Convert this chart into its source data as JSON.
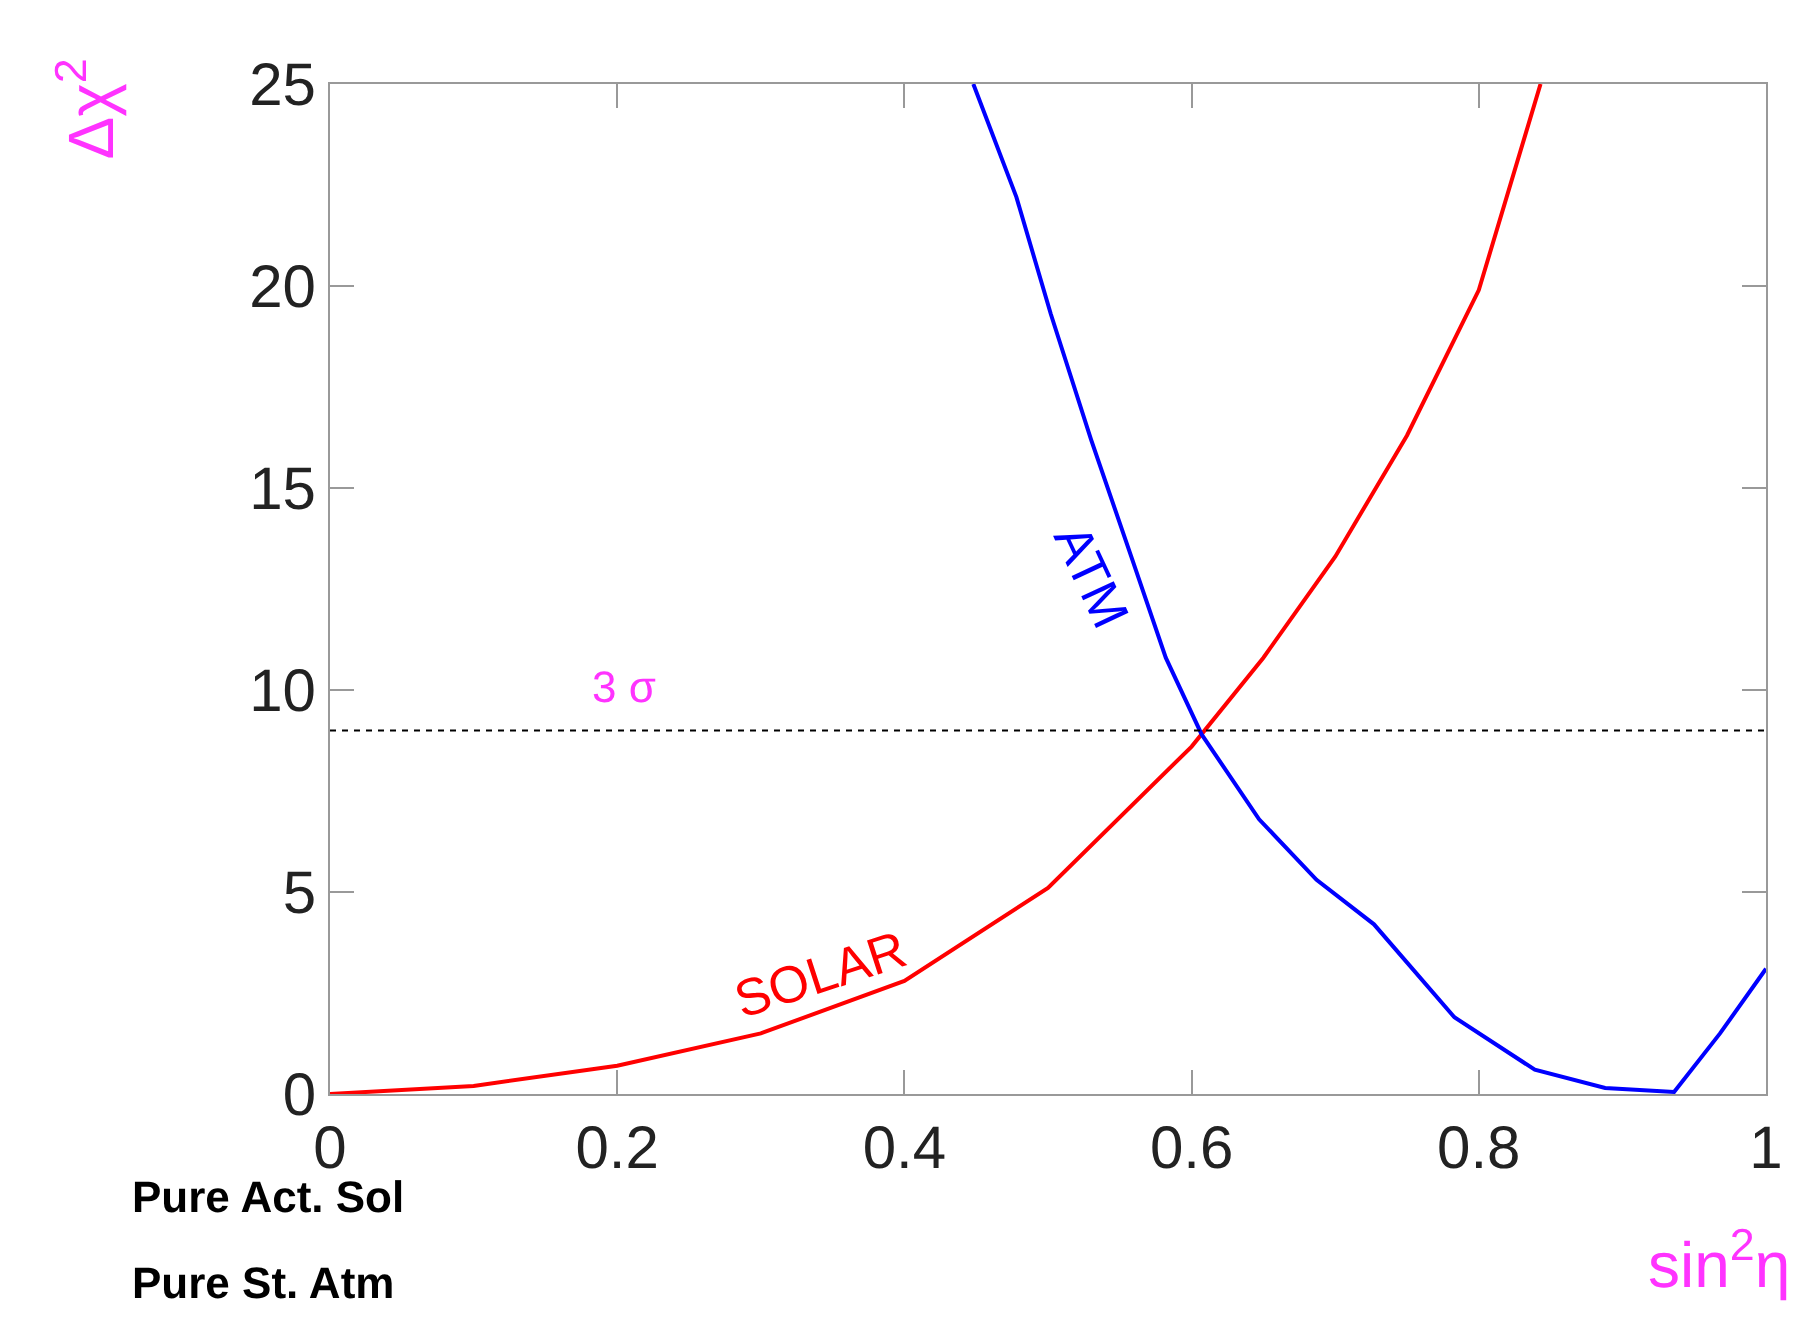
{
  "chart_data": {
    "type": "line",
    "xlabel": "sin$^{2}$η",
    "ylabel": "Δχ$^{2}$",
    "xlim": [
      0,
      1
    ],
    "ylim": [
      0,
      25
    ],
    "xticks": [
      0,
      0.2,
      0.4,
      0.6,
      0.8,
      1
    ],
    "yticks": [
      0,
      5,
      10,
      15,
      20,
      25
    ],
    "legend": false,
    "marker": "none",
    "line_style": "solid",
    "series": [
      {
        "name": "SOLAR",
        "color": "#ff0000",
        "x": [
          0,
          0.1,
          0.2,
          0.3,
          0.4,
          0.5,
          0.6,
          0.65,
          0.7,
          0.75,
          0.8,
          0.843
        ],
        "values": [
          0,
          0.2,
          0.7,
          1.5,
          2.8,
          5.1,
          8.6,
          10.8,
          13.3,
          16.3,
          19.9,
          25
        ]
      },
      {
        "name": "ATM",
        "color": "#0000ff",
        "x": [
          0.448,
          0.478,
          0.502,
          0.53,
          0.558,
          0.582,
          0.607,
          0.647,
          0.687,
          0.727,
          0.783,
          0.839,
          0.888,
          0.936,
          0.968,
          1
        ],
        "values": [
          25,
          22.2,
          19.3,
          16.2,
          13.3,
          10.8,
          8.9,
          6.8,
          5.3,
          4.2,
          1.9,
          0.6,
          0.15,
          0.05,
          1.5,
          3.1
        ]
      }
    ],
    "ref_lines": [
      {
        "axis": "y",
        "value": 9,
        "label": "3 σ",
        "color": "#000000",
        "line_style": "dotted"
      }
    ],
    "annotations": [
      "Pure Act. Sol",
      "Pure St. Atm"
    ]
  }
}
